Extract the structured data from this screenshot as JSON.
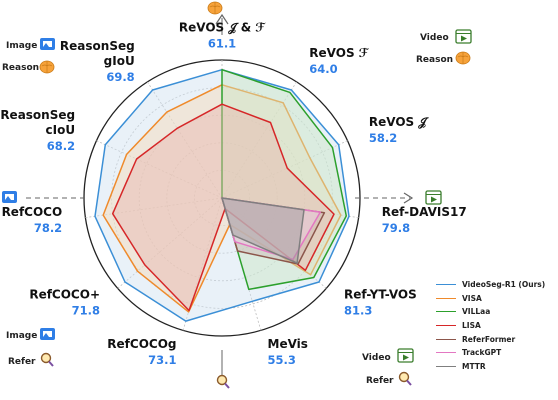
{
  "chart_data": {
    "type": "radar",
    "axes": [
      {
        "name": "ReVOS 𝒥 & ℱ",
        "value": "61.1"
      },
      {
        "name": "ReVOS ℱ",
        "value": "64.0"
      },
      {
        "name": "ReVOS 𝒥",
        "value": "58.2"
      },
      {
        "name": "Ref-DAVIS17",
        "value": "79.8"
      },
      {
        "name": "Ref-YT-VOS",
        "value": "81.3"
      },
      {
        "name": "MeVis",
        "value": "55.3"
      },
      {
        "name": "RefCOCOg",
        "value": "73.1"
      },
      {
        "name": "RefCOCO+",
        "value": "71.8"
      },
      {
        "name": "RefCOCO",
        "value": "78.2"
      },
      {
        "name": "ReasonSeg cIoU",
        "value": "68.2"
      },
      {
        "name": "ReasonSeg gIoU",
        "value": "69.8"
      }
    ],
    "rings": 5,
    "series": [
      {
        "name": "VideoSeg-R1 (Ours)",
        "color": "#3b8fd6",
        "fill": "#cfe0ef",
        "values": [
          0.93,
          0.93,
          0.93,
          0.93,
          0.93,
          0.78,
          0.93,
          0.93,
          0.93,
          0.93,
          0.93
        ]
      },
      {
        "name": "VISA",
        "color": "#ef8a2b",
        "fill": "#f6d9b6",
        "values": [
          0.82,
          0.82,
          0.7,
          0.87,
          0.85,
          0.2,
          0.86,
          0.81,
          0.87,
          0.76,
          0.74
        ]
      },
      {
        "name": "VILLaa",
        "color": "#2ca02c",
        "fill": "#c9e6c3",
        "values": [
          0.93,
          0.91,
          0.88,
          0.91,
          0.88,
          0.69,
          0.0,
          0.0,
          0.0,
          0.0,
          0.0
        ]
      },
      {
        "name": "LISA",
        "color": "#d62728",
        "fill": "#e9b6ae",
        "values": [
          0.68,
          0.65,
          0.52,
          0.82,
          0.8,
          0.08,
          0.85,
          0.74,
          0.8,
          0.68,
          0.6
        ]
      },
      {
        "name": "ReferFormer",
        "color": "#8c564b",
        "fill": "#cdb9b3",
        "values": [
          0.0,
          0.0,
          0.0,
          0.75,
          0.73,
          0.4,
          0.0,
          0.0,
          0.0,
          0.0,
          0.0
        ]
      },
      {
        "name": "TrackGPT",
        "color": "#e377c2",
        "fill": "#f2cfe6",
        "values": [
          0.0,
          0.0,
          0.0,
          0.72,
          0.68,
          0.33,
          0.0,
          0.0,
          0.0,
          0.0,
          0.0
        ]
      },
      {
        "name": "MTTR",
        "color": "#7f7f7f",
        "fill": "#9a9a9a",
        "values": [
          0.0,
          0.0,
          0.0,
          0.6,
          0.72,
          0.28,
          0.0,
          0.0,
          0.0,
          0.0,
          0.0
        ]
      }
    ],
    "legend_position": "bottom-right",
    "grid": true
  },
  "tags": {
    "image": "Image",
    "video": "Video",
    "reason": "Reason",
    "refer": "Refer"
  }
}
